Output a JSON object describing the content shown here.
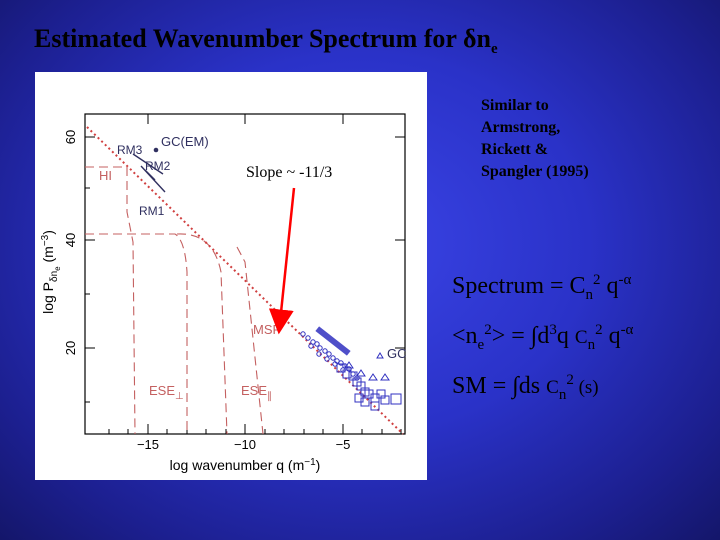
{
  "title": {
    "main": "Estimated Wavenumber Spectrum for ",
    "symbol": "δn",
    "subscript": "e"
  },
  "plot": {
    "xlabel": "log wavenumber q (m",
    "xlabel_exp": "−1",
    "xlabel_end": ")",
    "ylabel": "log P",
    "ylabel_sub": "δn",
    "ylabel_subsub": "e",
    "ylabel_unit": " (m",
    "ylabel_exp": "−3",
    "ylabel_end": ")",
    "x_ticks": [
      "−15",
      "−10",
      "−5"
    ],
    "y_ticks": [
      "20",
      "40",
      "60"
    ],
    "labels": {
      "rm3": "RM3",
      "gc_em": "GC(EM)",
      "rm2": "RM2",
      "hi": "HI",
      "rm1": "RM1",
      "msp": "MSP",
      "gc": "GC",
      "ese_perp": "ESE",
      "ese_perp_sub": "⊥",
      "ese_par": "ESE",
      "ese_par_sub": "∥"
    }
  },
  "slope_label": "Slope ~ -11/3",
  "note": "Similar to Armstrong, Rickett & Spangler (1995)",
  "eq1": {
    "a": "Spectrum = C",
    "sub": "n",
    "sup": "2",
    "b": " q",
    "sup2": "-α"
  },
  "eq2": {
    "a": "<n",
    "sub": "e",
    "sup": "2",
    "b": "> = ∫d",
    "sup2": "3",
    "c": "q ",
    "d": "C",
    "sub2": "n",
    "sup3": "2",
    "e": " q",
    "sup4": "-α"
  },
  "eq3": {
    "a": "SM = ∫ds ",
    "b": "C",
    "sub": "n",
    "sup": "2",
    "c": " (s)"
  },
  "colors": {
    "background": "#2a32c8",
    "arrow": "#ff0000",
    "points": "#3030c0",
    "fit_line": "#c03030"
  }
}
